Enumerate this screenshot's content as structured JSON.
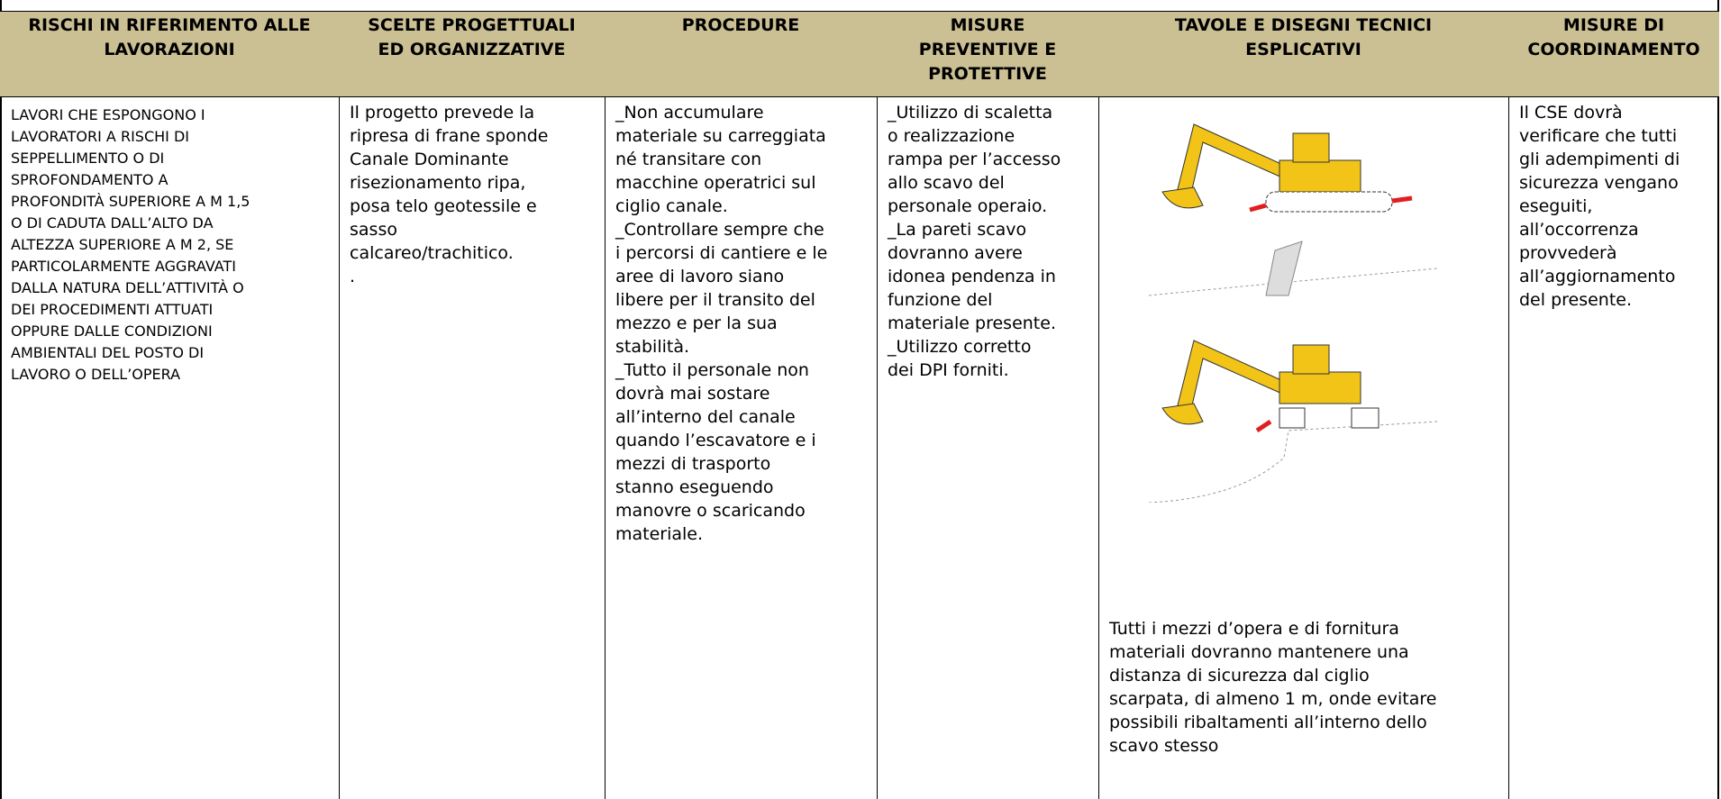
{
  "table": {
    "header": [
      [
        "RISCHI IN RIFERIMENTO ALLE",
        "LAVORAZIONI"
      ],
      [
        "SCELTE PROGETTUALI",
        "ED ORGANIZZATIVE"
      ],
      [
        "PROCEDURE"
      ],
      [
        "MISURE",
        "PREVENTIVE E",
        "PROTETTIVE"
      ],
      [
        "TAVOLE E DISEGNI TECNICI",
        "ESPLICATIVI"
      ],
      [
        "MISURE DI",
        "COORDINAMENTO"
      ]
    ],
    "rows": [
      [
        [
          "LAVORI CHE ESPONGONO I",
          "LAVORATORI A RISCHI DI",
          "SEPPELLIMENTO O DI",
          "SPROFONDAMENTO A",
          "PROFONDITÀ SUPERIORE A M 1,5",
          "O DI CADUTA DALL’ALTO DA",
          "ALTEZZA SUPERIORE A M 2, SE",
          "PARTICOLARMENTE AGGRAVATI",
          "DALLA NATURA DELL’ATTIVITÀ O",
          "DEI PROCEDIMENTI ATTUATI",
          "OPPURE DALLE CONDIZIONI",
          "AMBIENTALI DEL POSTO DI",
          "LAVORO O DELL’OPERA"
        ],
        [
          "Il progetto prevede la",
          "ripresa di frane sponde",
          "Canale Dominante",
          "risezionamento ripa,",
          "posa telo geotessile e",
          "sasso",
          "calcareo/trachitico.",
          "."
        ],
        [
          "_Non accumulare",
          "materiale su carreggiata",
          "né transitare con",
          "macchine operatrici sul",
          "ciglio canale.",
          "_Controllare sempre che",
          "i percorsi di cantiere e le",
          "aree di lavoro siano",
          "libere per il transito del",
          "mezzo e per la sua",
          "stabilità.",
          "_Tutto il personale non",
          "dovrà mai sostare",
          "all’interno del canale",
          "quando l’escavatore e i",
          "mezzi di trasporto",
          "stanno eseguendo",
          "manovre o scaricando",
          "materiale."
        ],
        [
          "_Utilizzo di scaletta",
          "o realizzazione",
          "rampa per l’accesso",
          "allo scavo del",
          "personale operaio.",
          "_La pareti scavo",
          "dovranno avere",
          "idonea pendenza in",
          "funzione del",
          "materiale presente.",
          "_Utilizzo corretto",
          "dei DPI forniti."
        ],
        [
          "Tutti i mezzi d’opera e di fornitura",
          "materiali dovranno mantenere una",
          "distanza di sicurezza dal ciglio",
          "scarpata, di almeno 1 m, onde evitare",
          "possibili ribaltamenti all’interno dello",
          "scavo stesso"
        ],
        [
          "Il CSE dovrà",
          "verificare che tutti",
          "gli adempimenti di",
          "sicurezza vengano",
          "eseguiti,",
          "all’occorrenza",
          "provvederà",
          "all’aggiornamento",
          "del presente."
        ]
      ]
    ]
  }
}
